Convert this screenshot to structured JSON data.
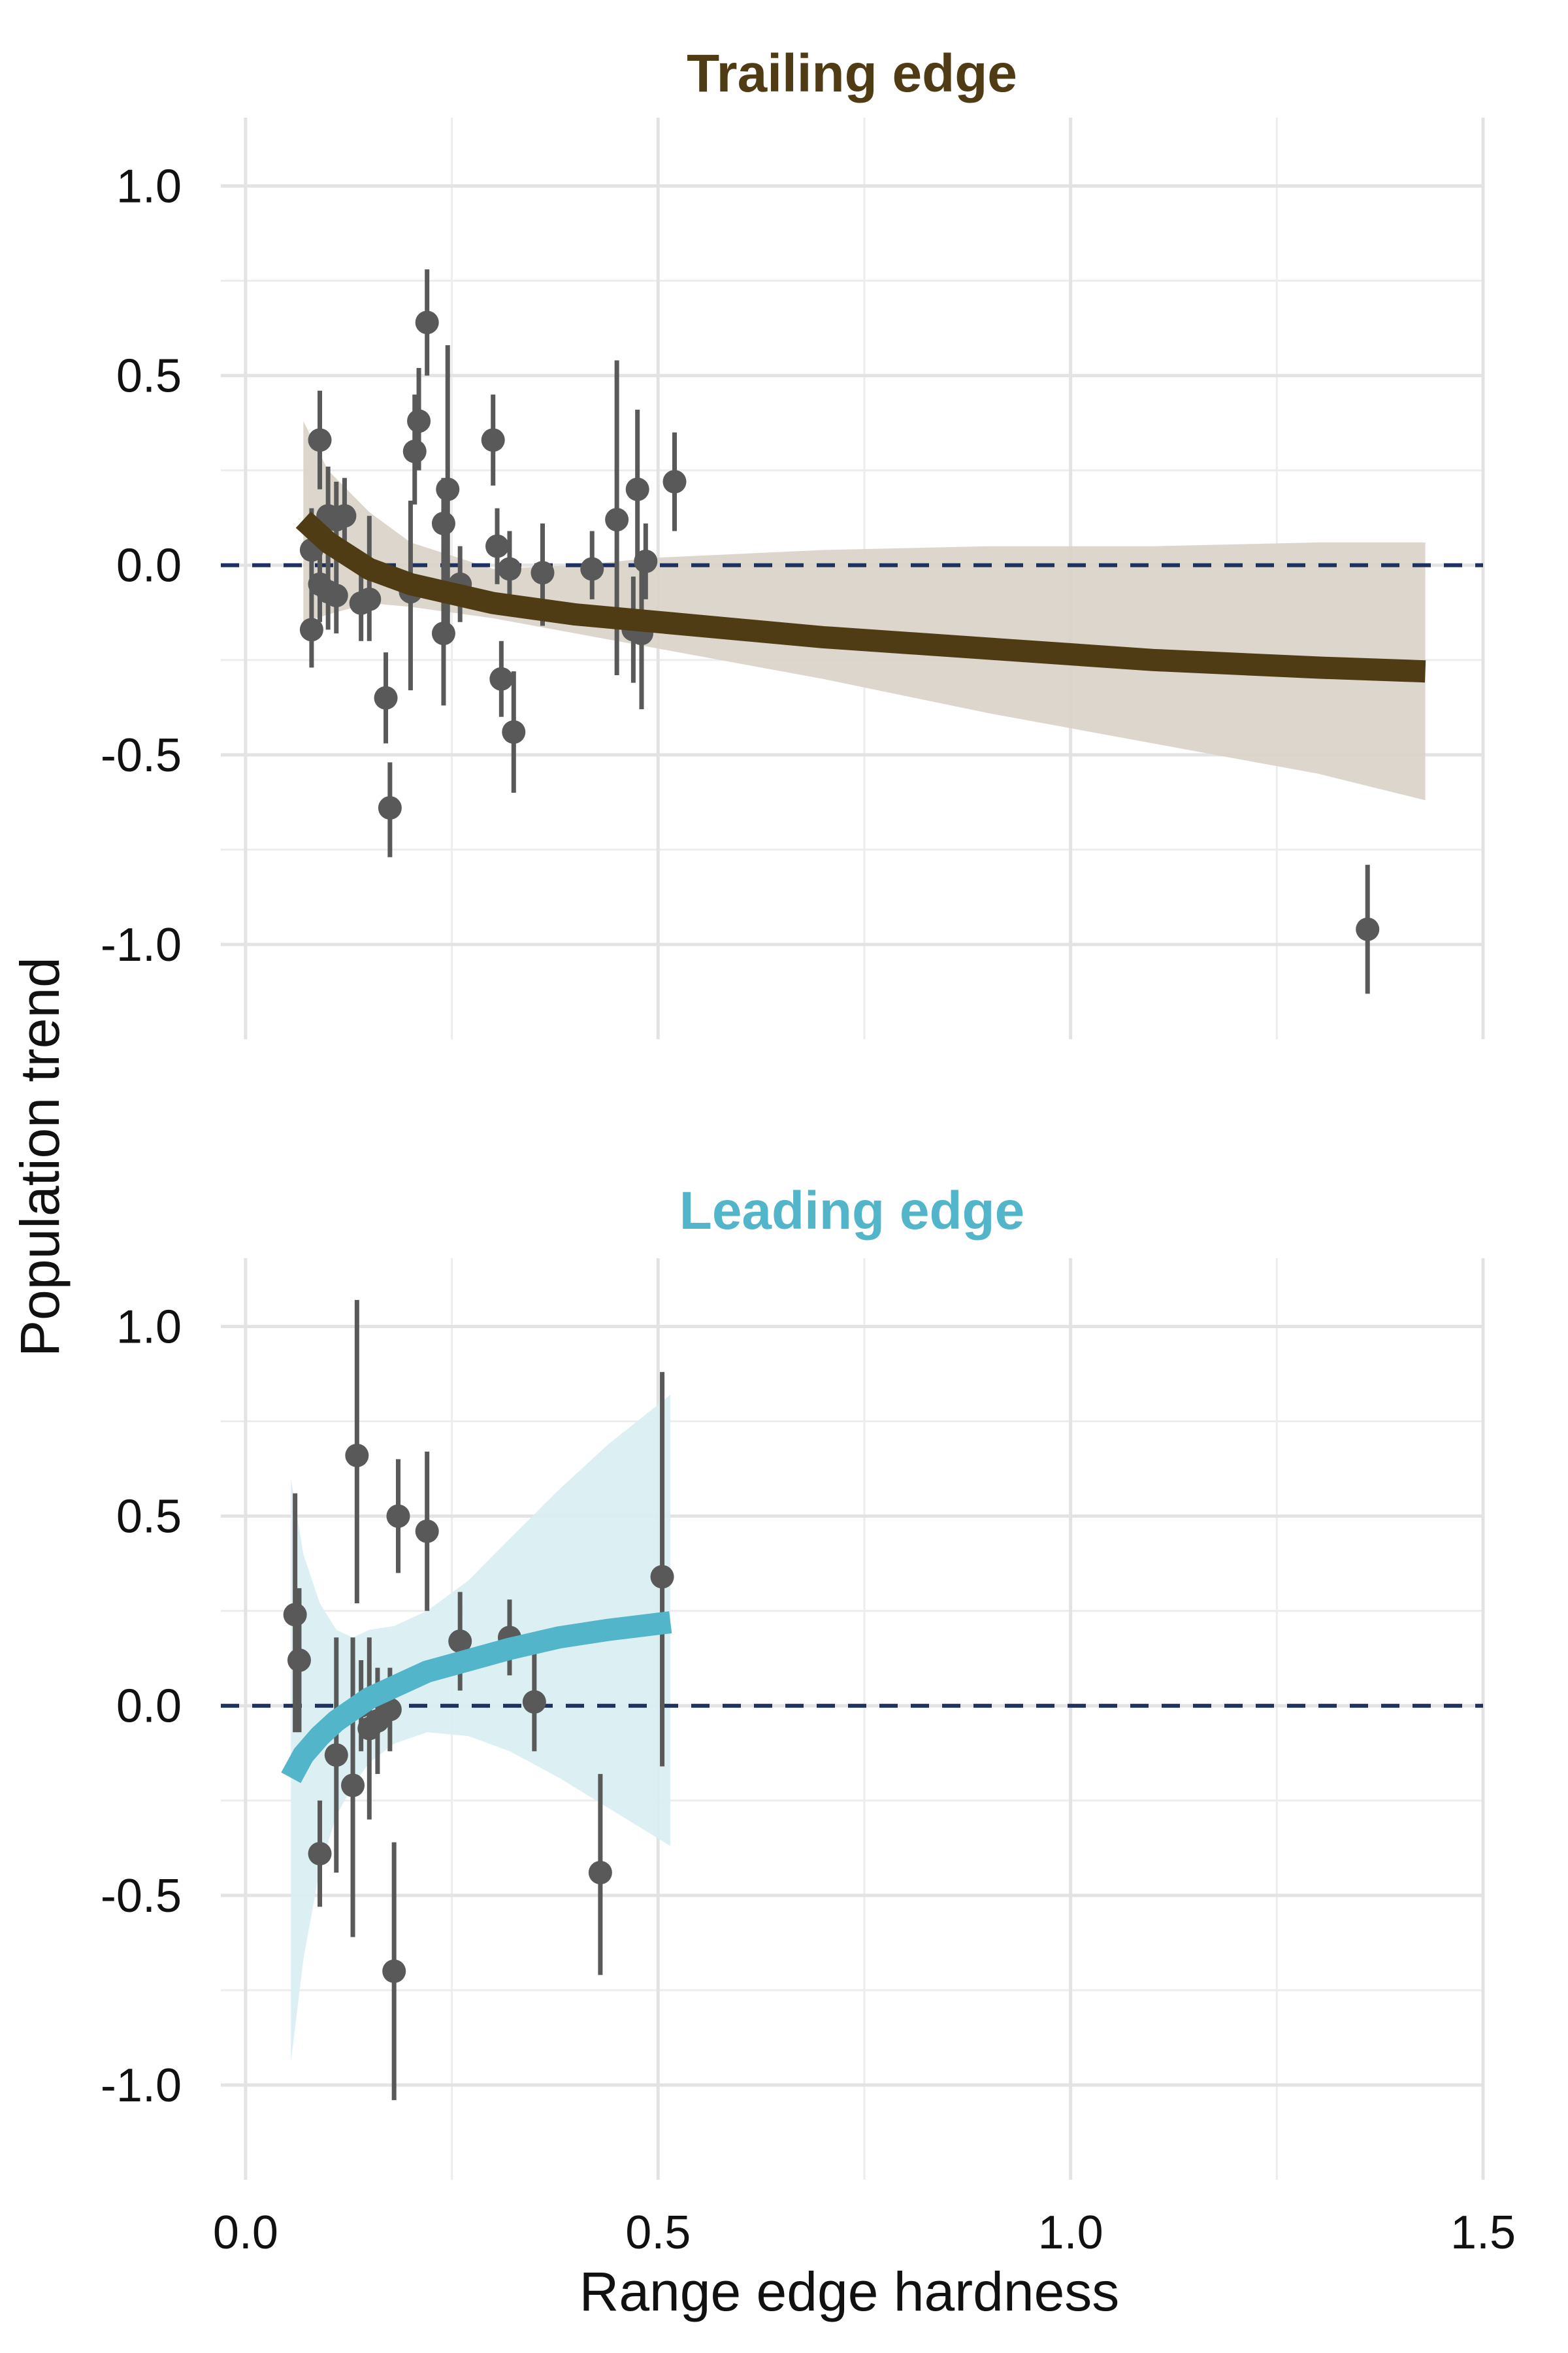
{
  "chart_data": {
    "type": "scatter",
    "xlabel": "Range edge hardness",
    "ylabel": "Population trend",
    "xlim": [
      -0.03,
      1.5
    ],
    "x_ticks": [
      0.0,
      0.5,
      1.0,
      1.5
    ],
    "x_tick_labels": [
      "0.0",
      "0.5",
      "1.0",
      "1.5"
    ],
    "ylim": [
      -1.25,
      1.18
    ],
    "y_ticks": [
      -1.0,
      -0.5,
      0.0,
      0.5,
      1.0
    ],
    "y_tick_labels": [
      "-1.0",
      "-0.5",
      "0.0",
      "0.5",
      "1.0"
    ],
    "grid": true,
    "reference_line": {
      "y": 0.0,
      "style": "dashed",
      "color": "#1f3160"
    },
    "point_color": "#595959",
    "panels": [
      {
        "title": "Trailing edge",
        "color": "#4f3c14",
        "ribbon_color": "#d9d2c6",
        "points": [
          {
            "x": 0.08,
            "y": -0.17,
            "lo": -0.27,
            "hi": -0.07
          },
          {
            "x": 0.08,
            "y": 0.04,
            "lo": -0.07,
            "hi": 0.15
          },
          {
            "x": 0.09,
            "y": -0.05,
            "lo": -0.15,
            "hi": 0.05
          },
          {
            "x": 0.09,
            "y": 0.33,
            "lo": 0.2,
            "hi": 0.46
          },
          {
            "x": 0.1,
            "y": 0.13,
            "lo": 0.0,
            "hi": 0.26
          },
          {
            "x": 0.1,
            "y": -0.07,
            "lo": -0.17,
            "hi": 0.03
          },
          {
            "x": 0.11,
            "y": -0.08,
            "lo": -0.18,
            "hi": 0.02
          },
          {
            "x": 0.11,
            "y": 0.12,
            "lo": 0.02,
            "hi": 0.22
          },
          {
            "x": 0.12,
            "y": 0.13,
            "lo": 0.03,
            "hi": 0.23
          },
          {
            "x": 0.14,
            "y": -0.1,
            "lo": -0.2,
            "hi": 0.0
          },
          {
            "x": 0.15,
            "y": -0.09,
            "lo": -0.2,
            "hi": 0.13
          },
          {
            "x": 0.17,
            "y": -0.35,
            "lo": -0.47,
            "hi": -0.23
          },
          {
            "x": 0.175,
            "y": -0.64,
            "lo": -0.77,
            "hi": -0.52
          },
          {
            "x": 0.2,
            "y": -0.07,
            "lo": -0.33,
            "hi": 0.17
          },
          {
            "x": 0.205,
            "y": 0.3,
            "lo": 0.16,
            "hi": 0.45
          },
          {
            "x": 0.21,
            "y": 0.38,
            "lo": 0.25,
            "hi": 0.52
          },
          {
            "x": 0.22,
            "y": 0.64,
            "lo": 0.5,
            "hi": 0.78
          },
          {
            "x": 0.24,
            "y": 0.11,
            "lo": -0.01,
            "hi": 0.23
          },
          {
            "x": 0.24,
            "y": -0.18,
            "lo": -0.37,
            "hi": -0.01
          },
          {
            "x": 0.245,
            "y": 0.2,
            "lo": -0.18,
            "hi": 0.58
          },
          {
            "x": 0.26,
            "y": -0.05,
            "lo": -0.15,
            "hi": 0.05
          },
          {
            "x": 0.3,
            "y": 0.33,
            "lo": 0.21,
            "hi": 0.45
          },
          {
            "x": 0.305,
            "y": 0.05,
            "lo": -0.05,
            "hi": 0.15
          },
          {
            "x": 0.31,
            "y": -0.3,
            "lo": -0.4,
            "hi": -0.2
          },
          {
            "x": 0.32,
            "y": -0.01,
            "lo": -0.11,
            "hi": 0.09
          },
          {
            "x": 0.325,
            "y": -0.44,
            "lo": -0.6,
            "hi": -0.28
          },
          {
            "x": 0.36,
            "y": -0.02,
            "lo": -0.16,
            "hi": 0.11
          },
          {
            "x": 0.42,
            "y": -0.01,
            "lo": -0.09,
            "hi": 0.09
          },
          {
            "x": 0.45,
            "y": 0.12,
            "lo": -0.29,
            "hi": 0.54
          },
          {
            "x": 0.47,
            "y": -0.17,
            "lo": -0.31,
            "hi": -0.03
          },
          {
            "x": 0.475,
            "y": 0.2,
            "lo": 0.0,
            "hi": 0.41
          },
          {
            "x": 0.48,
            "y": -0.18,
            "lo": -0.38,
            "hi": 0.02
          },
          {
            "x": 0.485,
            "y": 0.01,
            "lo": -0.09,
            "hi": 0.11
          },
          {
            "x": 0.52,
            "y": 0.22,
            "lo": 0.09,
            "hi": 0.35
          },
          {
            "x": 1.36,
            "y": -0.96,
            "lo": -1.13,
            "hi": -0.79
          }
        ],
        "fit": {
          "x": [
            0.07,
            0.1,
            0.15,
            0.2,
            0.3,
            0.4,
            0.5,
            0.7,
            0.9,
            1.1,
            1.3,
            1.43
          ],
          "y": [
            0.12,
            0.06,
            -0.01,
            -0.05,
            -0.1,
            -0.13,
            -0.15,
            -0.19,
            -0.22,
            -0.25,
            -0.27,
            -0.28
          ],
          "lower": [
            -0.15,
            -0.13,
            -0.1,
            -0.11,
            -0.14,
            -0.18,
            -0.22,
            -0.3,
            -0.39,
            -0.47,
            -0.55,
            -0.62
          ],
          "upper": [
            0.38,
            0.25,
            0.14,
            0.06,
            -0.01,
            0.0,
            0.02,
            0.04,
            0.05,
            0.05,
            0.06,
            0.06
          ]
        }
      },
      {
        "title": "Leading edge",
        "color": "#52b5c9",
        "ribbon_color": "#d8eef3",
        "points": [
          {
            "x": 0.06,
            "y": 0.24,
            "lo": -0.07,
            "hi": 0.56
          },
          {
            "x": 0.065,
            "y": 0.12,
            "lo": -0.07,
            "hi": 0.31
          },
          {
            "x": 0.09,
            "y": -0.39,
            "lo": -0.53,
            "hi": -0.25
          },
          {
            "x": 0.11,
            "y": -0.13,
            "lo": -0.44,
            "hi": 0.18
          },
          {
            "x": 0.13,
            "y": -0.21,
            "lo": -0.61,
            "hi": 0.18
          },
          {
            "x": 0.135,
            "y": 0.66,
            "lo": 0.27,
            "hi": 1.07
          },
          {
            "x": 0.14,
            "y": 0.0,
            "lo": -0.12,
            "hi": 0.12
          },
          {
            "x": 0.15,
            "y": -0.06,
            "lo": -0.3,
            "hi": 0.18
          },
          {
            "x": 0.16,
            "y": -0.04,
            "lo": -0.18,
            "hi": 0.1
          },
          {
            "x": 0.175,
            "y": -0.01,
            "lo": -0.12,
            "hi": 0.1
          },
          {
            "x": 0.18,
            "y": -0.7,
            "lo": -1.04,
            "hi": -0.36
          },
          {
            "x": 0.185,
            "y": 0.5,
            "lo": 0.35,
            "hi": 0.65
          },
          {
            "x": 0.22,
            "y": 0.46,
            "lo": 0.25,
            "hi": 0.67
          },
          {
            "x": 0.26,
            "y": 0.17,
            "lo": 0.04,
            "hi": 0.3
          },
          {
            "x": 0.32,
            "y": 0.18,
            "lo": 0.08,
            "hi": 0.28
          },
          {
            "x": 0.35,
            "y": 0.01,
            "lo": -0.12,
            "hi": 0.14
          },
          {
            "x": 0.43,
            "y": -0.44,
            "lo": -0.71,
            "hi": -0.18
          },
          {
            "x": 0.505,
            "y": 0.34,
            "lo": -0.16,
            "hi": 0.88
          }
        ],
        "fit": {
          "x": [
            0.055,
            0.07,
            0.09,
            0.11,
            0.13,
            0.15,
            0.18,
            0.22,
            0.27,
            0.32,
            0.38,
            0.44,
            0.515
          ],
          "y": [
            -0.19,
            -0.13,
            -0.08,
            -0.04,
            -0.01,
            0.02,
            0.05,
            0.09,
            0.12,
            0.15,
            0.18,
            0.2,
            0.22
          ],
          "lower": [
            -0.94,
            -0.67,
            -0.43,
            -0.29,
            -0.21,
            -0.15,
            -0.1,
            -0.07,
            -0.08,
            -0.12,
            -0.19,
            -0.27,
            -0.37
          ],
          "upper": [
            0.6,
            0.4,
            0.27,
            0.2,
            0.18,
            0.2,
            0.21,
            0.25,
            0.33,
            0.44,
            0.57,
            0.69,
            0.82
          ]
        }
      }
    ]
  }
}
